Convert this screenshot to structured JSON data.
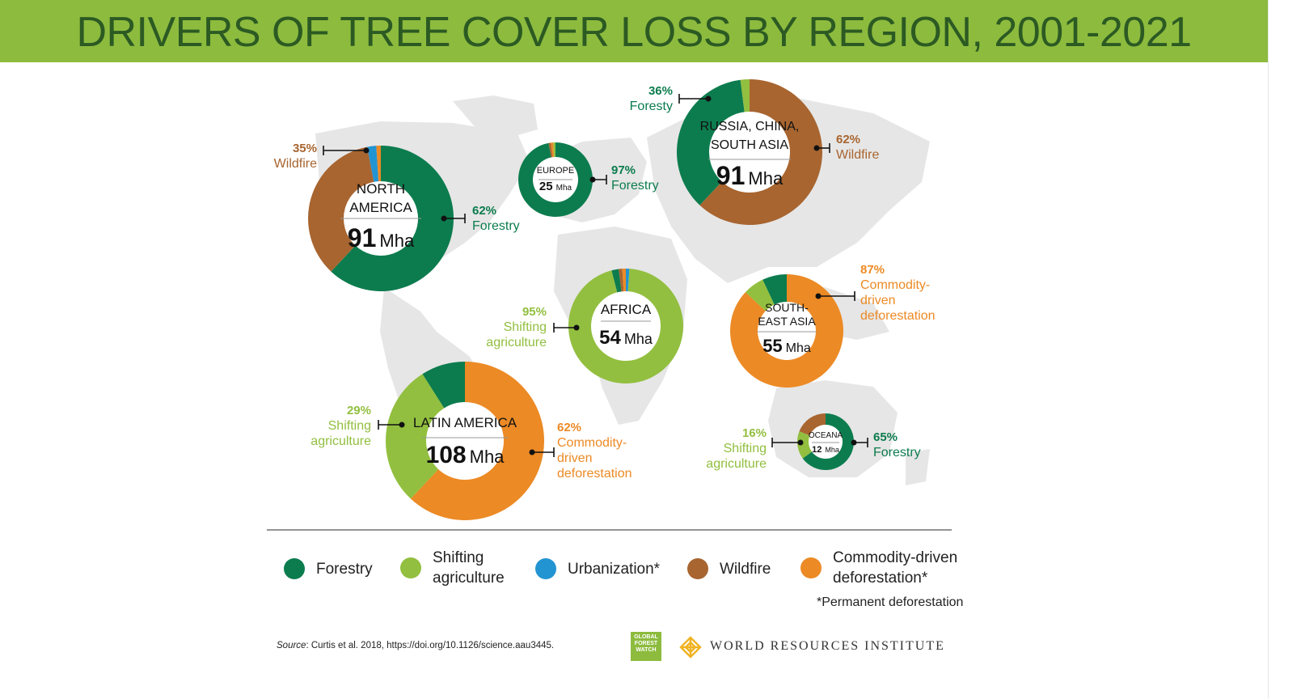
{
  "title": "DRIVERS OF TREE COVER LOSS BY REGION, 2001-2021",
  "colors": {
    "Forestry": "#0c7c4e",
    "Shifting agriculture": "#92bf3f",
    "Urbanization*": "#2394d2",
    "Wildfire": "#a86530",
    "Commodity-driven deforestation*": "#ec8a25"
  },
  "chart_data": {
    "type": "pie",
    "variant": "donut",
    "unit": "Mha",
    "regions": [
      {
        "key": "north_america",
        "name": [
          "NORTH",
          "AMERICA"
        ],
        "total": "91",
        "segments": [
          {
            "driver": "Forestry",
            "value": 62
          },
          {
            "driver": "Wildfire",
            "value": 35
          },
          {
            "driver": "Urbanization*",
            "value": 2
          },
          {
            "driver": "Commodity-driven deforestation*",
            "value": 1
          }
        ],
        "callouts": [
          {
            "pct": "35%",
            "label": [
              "Wildfire"
            ],
            "driver": "Wildfire"
          },
          {
            "pct": "62%",
            "label": [
              "Forestry"
            ],
            "driver": "Forestry"
          }
        ]
      },
      {
        "key": "europe",
        "name": [
          "EUROPE"
        ],
        "total": "25",
        "segments": [
          {
            "driver": "Forestry",
            "value": 97
          },
          {
            "driver": "Wildfire",
            "value": 1
          },
          {
            "driver": "Commodity-driven deforestation*",
            "value": 1
          },
          {
            "driver": "Shifting agriculture",
            "value": 1
          }
        ],
        "callouts": [
          {
            "pct": "97%",
            "label": [
              "Forestry"
            ],
            "driver": "Forestry"
          }
        ]
      },
      {
        "key": "russia",
        "name": [
          "RUSSIA, CHINA,",
          "SOUTH ASIA"
        ],
        "total": "91",
        "segments": [
          {
            "driver": "Wildfire",
            "value": 62
          },
          {
            "driver": "Forestry",
            "value": 36
          },
          {
            "driver": "Shifting agriculture",
            "value": 2
          }
        ],
        "callouts": [
          {
            "pct": "36%",
            "label": [
              "Foresty"
            ],
            "driver": "Forestry"
          },
          {
            "pct": "62%",
            "label": [
              "Wildfire"
            ],
            "driver": "Wildfire"
          }
        ]
      },
      {
        "key": "africa",
        "name": [
          "AFRICA"
        ],
        "total": "54",
        "segments": [
          {
            "driver": "Urbanization*",
            "value": 1
          },
          {
            "driver": "Shifting agriculture",
            "value": 95
          },
          {
            "driver": "Forestry",
            "value": 2
          },
          {
            "driver": "Wildfire",
            "value": 1
          },
          {
            "driver": "Commodity-driven deforestation*",
            "value": 1
          }
        ],
        "callouts": [
          {
            "pct": "95%",
            "label": [
              "Shifting",
              "agriculture"
            ],
            "driver": "Shifting agriculture"
          }
        ]
      },
      {
        "key": "southeast_asia",
        "name": [
          "SOUTH-",
          "EAST ASIA"
        ],
        "total": "55",
        "segments": [
          {
            "driver": "Commodity-driven deforestation*",
            "value": 87
          },
          {
            "driver": "Shifting agriculture",
            "value": 6
          },
          {
            "driver": "Forestry",
            "value": 7
          }
        ],
        "callouts": [
          {
            "pct": "87%",
            "label": [
              "Commodity-",
              "driven",
              "deforestation"
            ],
            "driver": "Commodity-driven deforestation*"
          }
        ]
      },
      {
        "key": "latin_america",
        "name": [
          "LATIN AMERICA"
        ],
        "total": "108",
        "segments": [
          {
            "driver": "Commodity-driven deforestation*",
            "value": 62
          },
          {
            "driver": "Shifting agriculture",
            "value": 29
          },
          {
            "driver": "Forestry",
            "value": 9
          }
        ],
        "callouts": [
          {
            "pct": "29%",
            "label": [
              "Shifting",
              "agriculture"
            ],
            "driver": "Shifting agriculture"
          },
          {
            "pct": "62%",
            "label": [
              "Commodity-",
              "driven",
              "deforestation"
            ],
            "driver": "Commodity-driven deforestation*"
          }
        ]
      },
      {
        "key": "oceania",
        "name": [
          "OCEANA"
        ],
        "total": "12",
        "segments": [
          {
            "driver": "Forestry",
            "value": 65
          },
          {
            "driver": "Shifting agriculture",
            "value": 16
          },
          {
            "driver": "Wildfire",
            "value": 19
          }
        ],
        "callouts": [
          {
            "pct": "16%",
            "label": [
              "Shifting",
              "agriculture"
            ],
            "driver": "Shifting agriculture"
          },
          {
            "pct": "65%",
            "label": [
              "Forestry"
            ],
            "driver": "Forestry"
          }
        ]
      }
    ]
  },
  "legend": {
    "items": [
      {
        "driver": "Forestry",
        "label": [
          "Forestry"
        ]
      },
      {
        "driver": "Shifting agriculture",
        "label": [
          "Shifting",
          "agriculture"
        ]
      },
      {
        "driver": "Urbanization*",
        "label": [
          "Urbanization*"
        ]
      },
      {
        "driver": "Wildfire",
        "label": [
          "Wildfire"
        ]
      },
      {
        "driver": "Commodity-driven deforestation*",
        "label": [
          "Commodity-driven",
          "deforestation*"
        ]
      }
    ],
    "footnote": "*Permanent deforestation"
  },
  "source": {
    "prefix": "Source",
    "text": ": Curtis et al. 2018, https://doi.org/10.1126/science.aau3445."
  },
  "logos": {
    "gfw": [
      "GLOBAL",
      "FOREST",
      "WATCH"
    ],
    "wri": "WORLD RESOURCES INSTITUTE"
  }
}
